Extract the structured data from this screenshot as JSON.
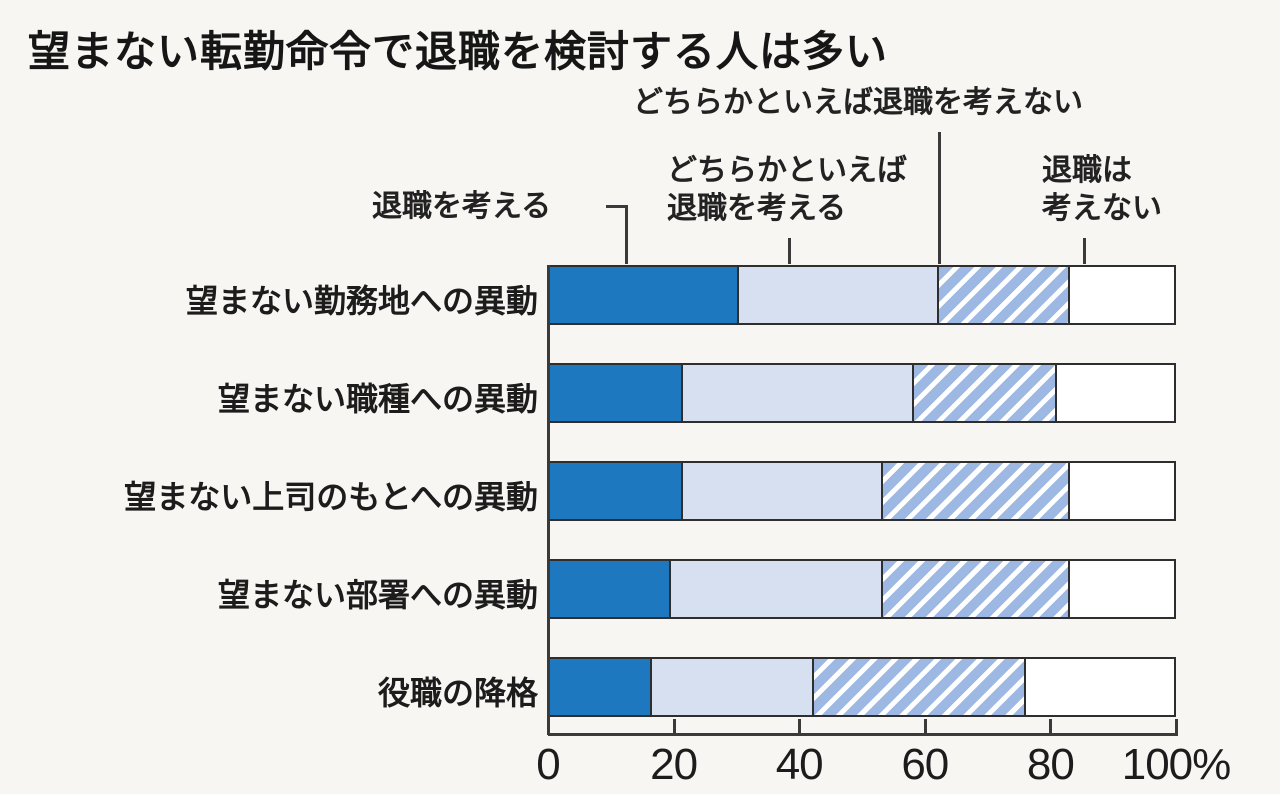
{
  "chart_data": {
    "type": "bar",
    "orientation": "horizontal-stacked",
    "title": "望まない転勤命令で退職を検討する人は多い",
    "categories": [
      "望まない勤務地への異動",
      "望まない職種への異動",
      "望まない上司のもとへの異動",
      "望まない部署への異動",
      "役職の降格"
    ],
    "series": [
      {
        "name": "退職を考える",
        "values": [
          30,
          21,
          21,
          19,
          16
        ],
        "color": "#1e78c0",
        "pattern": "solid"
      },
      {
        "name": "どちらかといえば退職を考える",
        "values": [
          32,
          37,
          32,
          34,
          26
        ],
        "color": "#d6e0f1",
        "pattern": "solid"
      },
      {
        "name": "どちらかといえば退職を考えない",
        "values": [
          21,
          23,
          30,
          30,
          34
        ],
        "color": "#9db8e2",
        "pattern": "diagonal-hatch",
        "hatch_stripe_color": "#ffffff"
      },
      {
        "name": "退職は考えない",
        "values": [
          17,
          19,
          17,
          17,
          24
        ],
        "color": "#ffffff",
        "pattern": "solid"
      }
    ],
    "xlim": [
      0,
      100
    ],
    "x_ticks": [
      {
        "value": 0,
        "label": "0"
      },
      {
        "value": 20,
        "label": "20"
      },
      {
        "value": 40,
        "label": "40"
      },
      {
        "value": 60,
        "label": "60"
      },
      {
        "value": 80,
        "label": "80"
      },
      {
        "value": 100,
        "label": "100%"
      }
    ],
    "grid": false,
    "legend_position": "above-chart-with-leader-lines"
  },
  "legend": {
    "consider_label": "退職を考える",
    "somewhat_consider_label": "どちらかといえば\n退職を考える",
    "somewhat_not_consider_label": "どちらかといえば退職を考えない",
    "not_consider_label": "退職は\n考えない"
  },
  "colors": {
    "border": "#2e2e2e",
    "connector": "#3a3a3a",
    "background": "#f7f6f3",
    "text": "#1c1c1c"
  }
}
